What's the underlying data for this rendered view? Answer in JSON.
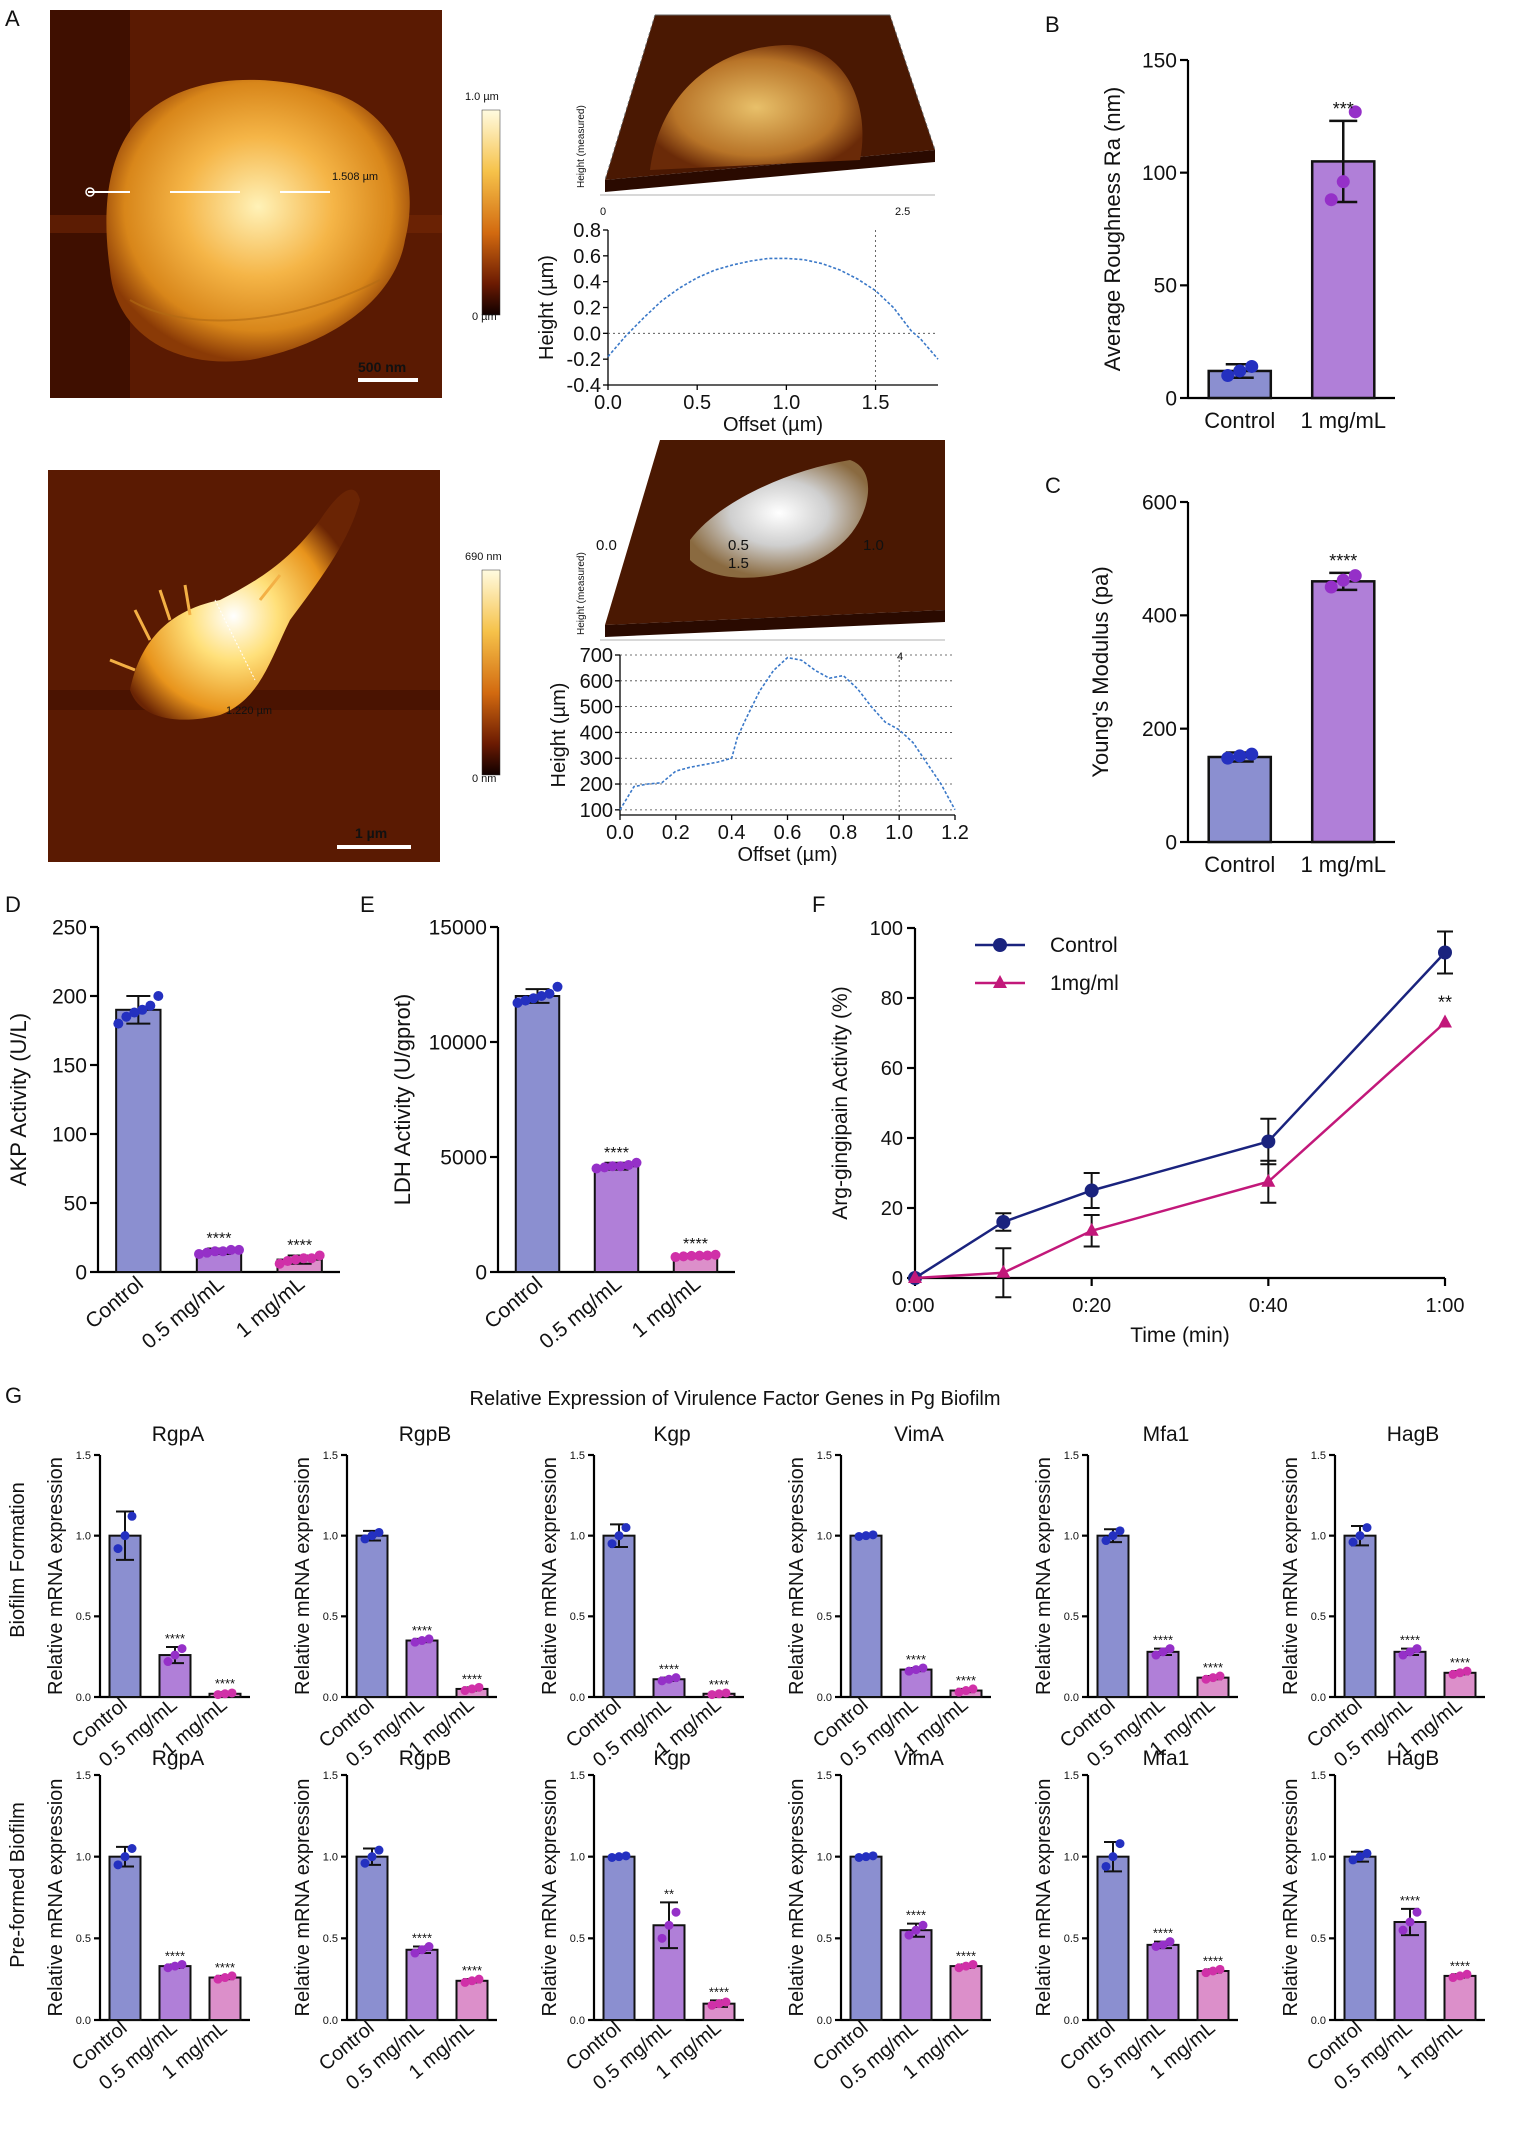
{
  "panel_labels": {
    "A": "A",
    "B": "B",
    "C": "C",
    "D": "D",
    "E": "E",
    "F": "F",
    "G": "G"
  },
  "afm_top": {
    "scale_bar": "500 nm",
    "colorbar_top": "1.0 µm",
    "colorbar_bottom": "0 µm",
    "measure": "1.508 µm",
    "d3_ticks": [
      "0",
      "2.5"
    ],
    "d3_axis": "Height (measured)"
  },
  "afm_bottom": {
    "scale_bar": "1 µm",
    "colorbar_top": "690 nm",
    "colorbar_bottom": "0 nm",
    "measure": "1.220 µm",
    "d3_labels": [
      "0.0",
      "0.5",
      "1.0",
      "1.5"
    ],
    "d3_ticks": [
      "4"
    ],
    "d3_axis": "Height (measured)"
  },
  "colors": {
    "control": "#8b8fd0",
    "half": "#b07fd8",
    "one": "#dc8fca",
    "dot_control": "#2430c0",
    "dot_half": "#9530c8",
    "dot_one": "#d030a8",
    "line_control": "#1a237e",
    "line_treat": "#c2187a",
    "profile": "#3a78c8"
  },
  "chart_data": [
    {
      "id": "A-profile-top",
      "type": "line",
      "title": "",
      "xlabel": "Offset (µm)",
      "ylabel": "Height (µm)",
      "xlim": [
        0,
        1.85
      ],
      "ylim": [
        -0.4,
        0.8
      ],
      "xticks": [
        "0.0",
        "0.5",
        "1.0",
        "1.5"
      ],
      "xtick_values": [
        0,
        0.5,
        1,
        1.5
      ],
      "yticks": [
        "-0.4",
        "-0.2",
        "0.0",
        "0.2",
        "0.4",
        "0.6",
        "0.8"
      ],
      "ytick_values": [
        -0.4,
        -0.2,
        0,
        0.2,
        0.4,
        0.6,
        0.8
      ],
      "marker_x": 1.5,
      "ref_y": 0.0,
      "x": [
        0,
        0.1,
        0.2,
        0.3,
        0.4,
        0.5,
        0.6,
        0.7,
        0.8,
        0.9,
        1.0,
        1.1,
        1.2,
        1.3,
        1.4,
        1.5,
        1.6,
        1.7,
        1.75,
        1.85
      ],
      "y": [
        -0.18,
        -0.02,
        0.12,
        0.25,
        0.35,
        0.43,
        0.49,
        0.53,
        0.56,
        0.58,
        0.58,
        0.57,
        0.54,
        0.49,
        0.42,
        0.33,
        0.2,
        0.02,
        -0.04,
        -0.2
      ]
    },
    {
      "id": "A-profile-bottom",
      "type": "line",
      "title": "",
      "xlabel": "Offset (µm)",
      "ylabel": "Height (µm)",
      "xlim": [
        0,
        1.2
      ],
      "ylim": [
        80,
        700
      ],
      "xticks": [
        "0.0",
        "0.2",
        "0.4",
        "0.6",
        "0.8",
        "1.0",
        "1.2"
      ],
      "xtick_values": [
        0,
        0.2,
        0.4,
        0.6,
        0.8,
        1.0,
        1.2
      ],
      "yticks": [
        "100",
        "200",
        "300",
        "400",
        "500",
        "600",
        "700"
      ],
      "ytick_values": [
        100,
        200,
        300,
        400,
        500,
        600,
        700
      ],
      "marker_x": 1.0,
      "x": [
        0,
        0.05,
        0.1,
        0.15,
        0.2,
        0.25,
        0.3,
        0.35,
        0.4,
        0.42,
        0.45,
        0.5,
        0.55,
        0.6,
        0.65,
        0.7,
        0.75,
        0.8,
        0.85,
        0.9,
        0.95,
        1.0,
        1.05,
        1.1,
        1.15,
        1.2
      ],
      "y": [
        100,
        190,
        200,
        205,
        250,
        265,
        275,
        285,
        300,
        380,
        450,
        560,
        640,
        690,
        680,
        640,
        610,
        620,
        570,
        500,
        440,
        410,
        360,
        280,
        200,
        100
      ]
    },
    {
      "id": "B",
      "type": "bar",
      "categories": [
        "Control",
        "1 mg/mL"
      ],
      "values": [
        12,
        105
      ],
      "errors": [
        3,
        18
      ],
      "points": [
        [
          10,
          12,
          14
        ],
        [
          88,
          96,
          127
        ]
      ],
      "sig": [
        "",
        "***"
      ],
      "ylabel": "Average Roughness Ra (nm)",
      "ylim": [
        0,
        150
      ],
      "yticks": [
        "0",
        "50",
        "100",
        "150"
      ],
      "ytick_values": [
        0,
        50,
        100,
        150
      ]
    },
    {
      "id": "C",
      "type": "bar",
      "categories": [
        "Control",
        "1 mg/mL"
      ],
      "values": [
        150,
        460
      ],
      "errors": [
        8,
        15
      ],
      "points": [
        [
          148,
          152,
          155
        ],
        [
          450,
          462,
          470
        ]
      ],
      "sig": [
        "",
        "****"
      ],
      "ylabel": "Young's Modulus (pa)",
      "ylim": [
        0,
        600
      ],
      "yticks": [
        "0",
        "200",
        "400",
        "600"
      ],
      "ytick_values": [
        0,
        200,
        400,
        600
      ]
    },
    {
      "id": "D",
      "type": "bar",
      "categories": [
        "Control",
        "0.5 mg/mL",
        "1 mg/mL"
      ],
      "values": [
        190,
        15,
        9
      ],
      "errors": [
        10,
        2,
        3
      ],
      "points": [
        [
          180,
          185,
          188,
          190,
          193,
          200
        ],
        [
          13,
          14,
          15,
          15,
          16,
          16
        ],
        [
          6,
          8,
          9,
          10,
          10,
          12
        ]
      ],
      "sig": [
        "",
        "****",
        "****"
      ],
      "ylabel": "AKP Activity (U/L)",
      "ylim": [
        0,
        250
      ],
      "yticks": [
        "0",
        "50",
        "100",
        "150",
        "200",
        "250"
      ],
      "ytick_values": [
        0,
        50,
        100,
        150,
        200,
        250
      ]
    },
    {
      "id": "E",
      "type": "bar",
      "categories": [
        "Control",
        "0.5 mg/mL",
        "1 mg/mL"
      ],
      "values": [
        12000,
        4600,
        700
      ],
      "errors": [
        300,
        150,
        80
      ],
      "points": [
        [
          11700,
          11800,
          11900,
          12000,
          12100,
          12400
        ],
        [
          4500,
          4550,
          4600,
          4600,
          4650,
          4750
        ],
        [
          650,
          680,
          700,
          710,
          720,
          750
        ]
      ],
      "sig": [
        "",
        "****",
        "****"
      ],
      "ylabel": "LDH Activity (U/gprot)",
      "ylim": [
        0,
        15000
      ],
      "yticks": [
        "0",
        "5000",
        "10000",
        "15000"
      ],
      "ytick_values": [
        0,
        5000,
        10000,
        15000
      ]
    },
    {
      "id": "F",
      "type": "line",
      "x_values": [
        0,
        10,
        20,
        40,
        60
      ],
      "xticks": [
        "0:00",
        "0:20",
        "0:40",
        "1:00"
      ],
      "xtick_values": [
        0,
        20,
        40,
        60
      ],
      "xlabel": "Time (min)",
      "ylabel": "Arg-gingipain Activity (%)",
      "xlim": [
        0,
        60
      ],
      "ylim": [
        0,
        100
      ],
      "yticks": [
        "0",
        "20",
        "40",
        "60",
        "80",
        "100"
      ],
      "ytick_values": [
        0,
        20,
        40,
        60,
        80,
        100
      ],
      "series": [
        {
          "name": "Control",
          "values": [
            0,
            16,
            25,
            39,
            93
          ],
          "errors": [
            0,
            2.5,
            5,
            6.5,
            6
          ],
          "marker": "circle"
        },
        {
          "name": "1mg/ml",
          "values": [
            0,
            1.5,
            13.5,
            27.5,
            73
          ],
          "errors": [
            0,
            7,
            4.5,
            6,
            0
          ],
          "marker": "triangle"
        }
      ],
      "annotations": [
        {
          "x": 60,
          "y": 73,
          "text": "**"
        }
      ]
    }
  ],
  "panel_g": {
    "title": "Relative Expression of Virulence Factor Genes in Pg Biofilm",
    "row_labels": [
      "Biofilm  Formation",
      "Pre-formed Biofilm"
    ],
    "ylabel": "Relative mRNA expression",
    "categories": [
      "Control",
      "0.5 mg/mL",
      "1 mg/mL"
    ],
    "yticks": [
      "0.0",
      "0.5",
      "1.0",
      "1.5"
    ],
    "ytick_values": [
      0,
      0.5,
      1.0,
      1.5
    ],
    "ylim": [
      0,
      1.5
    ],
    "rows": [
      [
        {
          "gene": "RgpA",
          "values": [
            1.0,
            0.26,
            0.02
          ],
          "errors": [
            0.15,
            0.05,
            0.01
          ],
          "points": [
            [
              0.92,
              1.0,
              1.12
            ],
            [
              0.22,
              0.26,
              0.3
            ],
            [
              0.015,
              0.02,
              0.025
            ]
          ],
          "sig": [
            "",
            "****",
            "****"
          ]
        },
        {
          "gene": "RgpB",
          "values": [
            1.0,
            0.35,
            0.05
          ],
          "errors": [
            0.03,
            0.01,
            0.01
          ],
          "points": [
            [
              0.98,
              1.0,
              1.02
            ],
            [
              0.34,
              0.35,
              0.36
            ],
            [
              0.04,
              0.05,
              0.06
            ]
          ],
          "sig": [
            "",
            "****",
            "****"
          ]
        },
        {
          "gene": "Kgp",
          "values": [
            1.0,
            0.11,
            0.02
          ],
          "errors": [
            0.07,
            0.01,
            0.005
          ],
          "points": [
            [
              0.95,
              1.0,
              1.05
            ],
            [
              0.1,
              0.11,
              0.12
            ],
            [
              0.015,
              0.02,
              0.025
            ]
          ],
          "sig": [
            "",
            "****",
            "****"
          ]
        },
        {
          "gene": "VimA",
          "values": [
            1.0,
            0.17,
            0.04
          ],
          "errors": [
            0.005,
            0.01,
            0.01
          ],
          "points": [
            [
              0.995,
              1.0,
              1.005
            ],
            [
              0.16,
              0.17,
              0.18
            ],
            [
              0.03,
              0.04,
              0.05
            ]
          ],
          "sig": [
            "",
            "****",
            "****"
          ]
        },
        {
          "gene": "Mfa1",
          "values": [
            1.0,
            0.28,
            0.12
          ],
          "errors": [
            0.04,
            0.02,
            0.01
          ],
          "points": [
            [
              0.97,
              1.0,
              1.03
            ],
            [
              0.26,
              0.28,
              0.3
            ],
            [
              0.11,
              0.12,
              0.13
            ]
          ],
          "sig": [
            "",
            "****",
            "****"
          ]
        },
        {
          "gene": "HagB",
          "values": [
            1.0,
            0.28,
            0.15
          ],
          "errors": [
            0.06,
            0.02,
            0.01
          ],
          "points": [
            [
              0.96,
              1.0,
              1.05
            ],
            [
              0.26,
              0.28,
              0.3
            ],
            [
              0.14,
              0.15,
              0.16
            ]
          ],
          "sig": [
            "",
            "****",
            "****"
          ]
        }
      ],
      [
        {
          "gene": "RgpA",
          "values": [
            1.0,
            0.33,
            0.26
          ],
          "errors": [
            0.06,
            0.01,
            0.01
          ],
          "points": [
            [
              0.95,
              1.0,
              1.05
            ],
            [
              0.32,
              0.33,
              0.34
            ],
            [
              0.25,
              0.26,
              0.27
            ]
          ],
          "sig": [
            "",
            "****",
            "****"
          ]
        },
        {
          "gene": "RgpB",
          "values": [
            1.0,
            0.43,
            0.24
          ],
          "errors": [
            0.05,
            0.02,
            0.01
          ],
          "points": [
            [
              0.96,
              1.0,
              1.04
            ],
            [
              0.41,
              0.43,
              0.45
            ],
            [
              0.23,
              0.24,
              0.25
            ]
          ],
          "sig": [
            "",
            "****",
            "****"
          ]
        },
        {
          "gene": "Kgp",
          "values": [
            1.0,
            0.58,
            0.1
          ],
          "errors": [
            0.005,
            0.14,
            0.02
          ],
          "points": [
            [
              0.995,
              1.0,
              1.005
            ],
            [
              0.5,
              0.58,
              0.66
            ],
            [
              0.09,
              0.1,
              0.11
            ]
          ],
          "sig": [
            "",
            "**",
            "****"
          ]
        },
        {
          "gene": "VimA",
          "values": [
            1.0,
            0.55,
            0.33
          ],
          "errors": [
            0.005,
            0.04,
            0.01
          ],
          "points": [
            [
              0.995,
              1.0,
              1.005
            ],
            [
              0.52,
              0.55,
              0.58
            ],
            [
              0.32,
              0.33,
              0.34
            ]
          ],
          "sig": [
            "",
            "****",
            "****"
          ]
        },
        {
          "gene": "Mfa1",
          "values": [
            1.0,
            0.46,
            0.3
          ],
          "errors": [
            0.09,
            0.02,
            0.01
          ],
          "points": [
            [
              0.94,
              1.0,
              1.08
            ],
            [
              0.45,
              0.46,
              0.48
            ],
            [
              0.29,
              0.3,
              0.31
            ]
          ],
          "sig": [
            "",
            "****",
            "****"
          ]
        },
        {
          "gene": "HagB",
          "values": [
            1.0,
            0.6,
            0.27
          ],
          "errors": [
            0.03,
            0.08,
            0.01
          ],
          "points": [
            [
              0.98,
              1.0,
              1.02
            ],
            [
              0.55,
              0.6,
              0.66
            ],
            [
              0.26,
              0.27,
              0.28
            ]
          ],
          "sig": [
            "",
            "****",
            "****"
          ]
        }
      ]
    ]
  }
}
